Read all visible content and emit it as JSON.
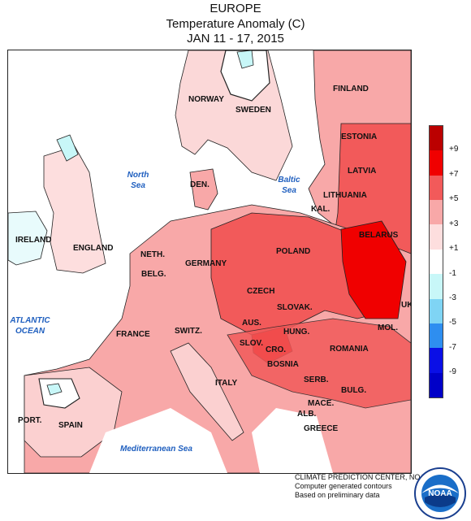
{
  "header": {
    "region": "EUROPE",
    "variable": "Temperature Anomaly (C)",
    "period": "JAN 11 - 17, 2015"
  },
  "countries": [
    "NORWAY",
    "SWEDEN",
    "FINLAND",
    "ESTONIA",
    "LATVIA",
    "LITHUANIA",
    "KAL.",
    "BELARUS",
    "DEN.",
    "IRELAND",
    "ENGLAND",
    "NETH.",
    "BELG.",
    "GERMANY",
    "POLAND",
    "CZECH",
    "SLOVAK.",
    "AUS.",
    "HUNG.",
    "SWITZ.",
    "FRANCE",
    "SLOV.",
    "CRO.",
    "BOSNIA",
    "SERB.",
    "ROMANIA",
    "MOL.",
    "UK",
    "BULG.",
    "MACE.",
    "ALB.",
    "GREECE",
    "ITALY",
    "PORT.",
    "SPAIN"
  ],
  "seas": [
    "North Sea",
    "Baltic Sea",
    "ATLANTIC OCEAN",
    "Mediterranean Sea"
  ],
  "legend": {
    "ticks": [
      "+9",
      "+7",
      "+5",
      "+3",
      "+1",
      "-1",
      "-3",
      "-5",
      "-7",
      "-9"
    ],
    "colors": [
      "#bb0000",
      "#f00000",
      "#f25a5a",
      "#f8a8a8",
      "#fddede",
      "#ffffff",
      "#c8f7f8",
      "#7fd4f4",
      "#2e8ef0",
      "#0a0fe6",
      "#0000c8"
    ]
  },
  "credit": {
    "line1": "CLIMATE PREDICTION CENTER, NOAA",
    "line2": "Computer generated contours",
    "line3": "Based on preliminary data"
  },
  "logo": {
    "icon": "noaa-logo",
    "text": "NOAA"
  }
}
